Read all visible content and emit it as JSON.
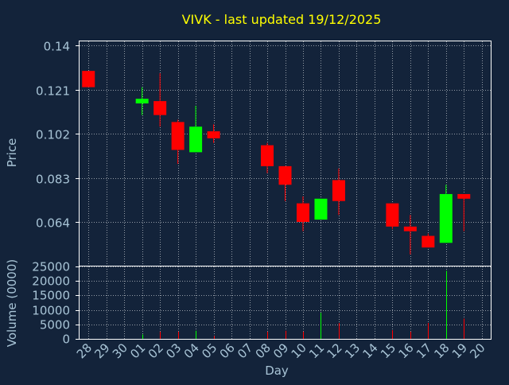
{
  "colors": {
    "background": "#13233a",
    "frame": "#ffffff",
    "grid": "#ffffff",
    "title": "#ffff00",
    "axis_text": "#a8c4d6",
    "up": "#00ff00",
    "down": "#ff0000"
  },
  "chart_data": [
    {
      "type": "candlestick",
      "title": "VIVK - last updated 19/12/2025",
      "ylabel": "Price",
      "xlabel": "Day",
      "ylim": [
        0.045,
        0.14
      ],
      "yticks": [
        "0.14",
        "0.121",
        "0.102",
        "0.083",
        "0.064"
      ],
      "ytick_values": [
        0.14,
        0.121,
        0.102,
        0.083,
        0.064
      ],
      "grid": true,
      "categories": [
        "28",
        "29",
        "30",
        "01",
        "02",
        "03",
        "04",
        "05",
        "06",
        "07",
        "08",
        "09",
        "10",
        "11",
        "12",
        "13",
        "14",
        "15",
        "16",
        "17",
        "18",
        "19",
        "20"
      ],
      "ohlc": [
        {
          "x": "28",
          "open": 0.129,
          "high": 0.129,
          "low": 0.122,
          "close": 0.122
        },
        {
          "x": "01",
          "open": 0.115,
          "high": 0.122,
          "low": 0.11,
          "close": 0.117
        },
        {
          "x": "02",
          "open": 0.116,
          "high": 0.128,
          "low": 0.105,
          "close": 0.11
        },
        {
          "x": "03",
          "open": 0.107,
          "high": 0.108,
          "low": 0.089,
          "close": 0.095
        },
        {
          "x": "04",
          "open": 0.094,
          "high": 0.114,
          "low": 0.094,
          "close": 0.105
        },
        {
          "x": "05",
          "open": 0.103,
          "high": 0.106,
          "low": 0.098,
          "close": 0.1
        },
        {
          "x": "08",
          "open": 0.097,
          "high": 0.098,
          "low": 0.085,
          "close": 0.088
        },
        {
          "x": "09",
          "open": 0.088,
          "high": 0.088,
          "low": 0.073,
          "close": 0.08
        },
        {
          "x": "10",
          "open": 0.072,
          "high": 0.075,
          "low": 0.06,
          "close": 0.064
        },
        {
          "x": "11",
          "open": 0.065,
          "high": 0.074,
          "low": 0.065,
          "close": 0.074
        },
        {
          "x": "12",
          "open": 0.082,
          "high": 0.087,
          "low": 0.067,
          "close": 0.073
        },
        {
          "x": "15",
          "open": 0.072,
          "high": 0.072,
          "low": 0.061,
          "close": 0.062
        },
        {
          "x": "16",
          "open": 0.062,
          "high": 0.067,
          "low": 0.05,
          "close": 0.06
        },
        {
          "x": "17",
          "open": 0.058,
          "high": 0.059,
          "low": 0.053,
          "close": 0.053
        },
        {
          "x": "18",
          "open": 0.055,
          "high": 0.08,
          "low": 0.055,
          "close": 0.076
        },
        {
          "x": "19",
          "open": 0.076,
          "high": 0.076,
          "low": 0.06,
          "close": 0.074
        }
      ]
    },
    {
      "type": "bar",
      "ylabel": "Volume (0000)",
      "ylim": [
        0,
        25000
      ],
      "yticks": [
        "25000",
        "20000",
        "15000",
        "10000",
        "5000",
        "0"
      ],
      "ytick_values": [
        25000,
        20000,
        15000,
        10000,
        5000,
        0
      ],
      "grid": true,
      "values": [
        {
          "x": "01",
          "value": 1500,
          "direction": "up"
        },
        {
          "x": "02",
          "value": 2500,
          "direction": "down"
        },
        {
          "x": "03",
          "value": 2500,
          "direction": "down"
        },
        {
          "x": "04",
          "value": 2800,
          "direction": "up"
        },
        {
          "x": "05",
          "value": 1000,
          "direction": "down"
        },
        {
          "x": "08",
          "value": 2500,
          "direction": "down"
        },
        {
          "x": "09",
          "value": 2800,
          "direction": "down"
        },
        {
          "x": "10",
          "value": 2500,
          "direction": "down"
        },
        {
          "x": "11",
          "value": 9000,
          "direction": "up"
        },
        {
          "x": "12",
          "value": 5500,
          "direction": "down"
        },
        {
          "x": "15",
          "value": 3000,
          "direction": "down"
        },
        {
          "x": "16",
          "value": 2500,
          "direction": "down"
        },
        {
          "x": "17",
          "value": 5500,
          "direction": "down"
        },
        {
          "x": "18",
          "value": 23500,
          "direction": "up"
        },
        {
          "x": "19",
          "value": 7000,
          "direction": "down"
        }
      ]
    }
  ]
}
